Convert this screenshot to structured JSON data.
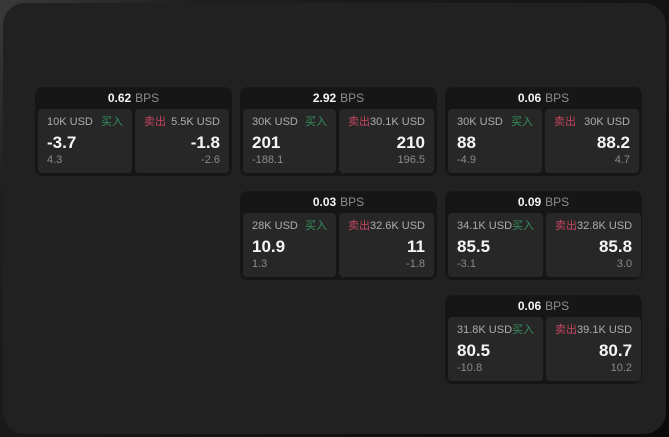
{
  "labels": {
    "bps": "BPS",
    "buy": "买入",
    "sell": "卖出"
  },
  "colors": {
    "buy_green": "#35925c",
    "sell_red": "#c4455e",
    "panel_bg": "#212121",
    "card_bg": "#161616",
    "tile_bg": "#272727"
  },
  "cards": [
    {
      "row": 1,
      "col": 1,
      "bps": "0.62",
      "buy": {
        "amount": "10K USD",
        "price": "-3.7",
        "delta": "4.3"
      },
      "sell": {
        "amount": "5.5K USD",
        "price": "-1.8",
        "delta": "-2.6"
      }
    },
    {
      "row": 1,
      "col": 2,
      "bps": "2.92",
      "buy": {
        "amount": "30K USD",
        "price": "201",
        "delta": "-188.1"
      },
      "sell": {
        "amount": "30.1K USD",
        "price": "210",
        "delta": "196.5"
      }
    },
    {
      "row": 1,
      "col": 3,
      "bps": "0.06",
      "buy": {
        "amount": "30K USD",
        "price": "88",
        "delta": "-4.9"
      },
      "sell": {
        "amount": "30K USD",
        "price": "88.2",
        "delta": "4.7"
      }
    },
    {
      "row": 2,
      "col": 2,
      "bps": "0.03",
      "buy": {
        "amount": "28K USD",
        "price": "10.9",
        "delta": "1.3"
      },
      "sell": {
        "amount": "32.6K USD",
        "price": "11",
        "delta": "-1.8"
      }
    },
    {
      "row": 2,
      "col": 3,
      "bps": "0.09",
      "buy": {
        "amount": "34.1K USD",
        "price": "85.5",
        "delta": "-3.1"
      },
      "sell": {
        "amount": "32.8K USD",
        "price": "85.8",
        "delta": "3.0"
      }
    },
    {
      "row": 3,
      "col": 3,
      "bps": "0.06",
      "buy": {
        "amount": "31.8K USD",
        "price": "80.5",
        "delta": "-10.8"
      },
      "sell": {
        "amount": "39.1K USD",
        "price": "80.7",
        "delta": "10.2"
      }
    }
  ]
}
